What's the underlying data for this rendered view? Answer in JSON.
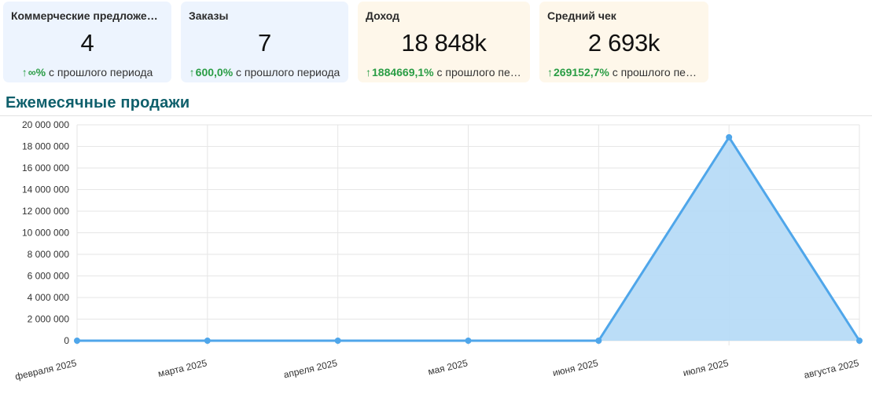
{
  "cards": [
    {
      "title": "Коммерческие предложения",
      "value": "4",
      "change_pct": "∞%",
      "change_text": "с прошлого периода",
      "theme": "blue"
    },
    {
      "title": "Заказы",
      "value": "7",
      "change_pct": "600,0%",
      "change_text": "с прошлого периода",
      "theme": "blue"
    },
    {
      "title": "Доход",
      "value": "18 848k",
      "change_pct": "1884669,1%",
      "change_text": "с прошлого периода",
      "theme": "orange"
    },
    {
      "title": "Средний чек",
      "value": "2 693k",
      "change_pct": "269152,7%",
      "change_text": "с прошлого периода",
      "theme": "orange"
    }
  ],
  "section": {
    "title": "Ежемесячные продажи"
  },
  "colors": {
    "line": "#4fa6ea",
    "fill": "#b7dbf7",
    "positive": "#2a9d45",
    "title": "#0e5f6b"
  },
  "chart_data": {
    "type": "area",
    "categories": [
      "февраля 2025",
      "марта 2025",
      "апреля 2025",
      "мая 2025",
      "июня 2025",
      "июля 2025",
      "августа 2025"
    ],
    "series": [
      {
        "values": [
          0,
          0,
          0,
          0,
          0,
          18848000,
          0
        ]
      }
    ],
    "ylim": [
      0,
      20000000
    ],
    "yticks": [
      0,
      2000000,
      4000000,
      6000000,
      8000000,
      10000000,
      12000000,
      14000000,
      16000000,
      18000000,
      20000000
    ],
    "ytick_labels": [
      "0",
      "2 000 000",
      "4 000 000",
      "6 000 000",
      "8 000 000",
      "10 000 000",
      "12 000 000",
      "14 000 000",
      "16 000 000",
      "18 000 000",
      "20 000 000"
    ],
    "grid": true,
    "legend": "none"
  }
}
